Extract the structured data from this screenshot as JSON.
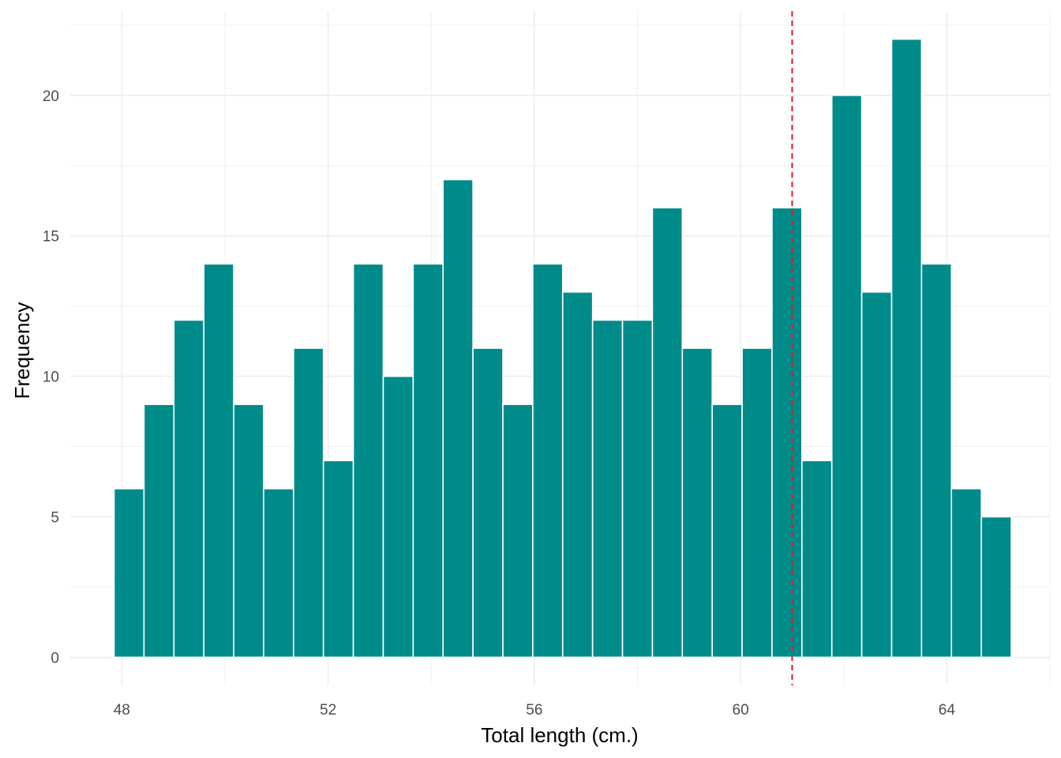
{
  "chart_data": {
    "type": "bar",
    "subtype": "histogram",
    "xlabel": "Total length (cm.)",
    "ylabel": "Frequency",
    "xlim": [
      47,
      66
    ],
    "ylim": [
      -1,
      23
    ],
    "x_ticks": [
      48,
      52,
      56,
      60,
      64
    ],
    "y_ticks": [
      0,
      5,
      10,
      15,
      20
    ],
    "bin_width": 0.58,
    "bins": [
      {
        "start": 47.85,
        "end": 48.43,
        "count": 6
      },
      {
        "start": 48.43,
        "end": 49.01,
        "count": 9
      },
      {
        "start": 49.01,
        "end": 49.59,
        "count": 12
      },
      {
        "start": 49.59,
        "end": 50.17,
        "count": 14
      },
      {
        "start": 50.17,
        "end": 50.75,
        "count": 9
      },
      {
        "start": 50.75,
        "end": 51.33,
        "count": 6
      },
      {
        "start": 51.33,
        "end": 51.91,
        "count": 11
      },
      {
        "start": 51.91,
        "end": 52.49,
        "count": 7
      },
      {
        "start": 52.49,
        "end": 53.07,
        "count": 14
      },
      {
        "start": 53.07,
        "end": 53.65,
        "count": 10
      },
      {
        "start": 53.65,
        "end": 54.23,
        "count": 14
      },
      {
        "start": 54.23,
        "end": 54.81,
        "count": 17
      },
      {
        "start": 54.81,
        "end": 55.39,
        "count": 11
      },
      {
        "start": 55.39,
        "end": 55.97,
        "count": 9
      },
      {
        "start": 55.97,
        "end": 56.55,
        "count": 14
      },
      {
        "start": 56.55,
        "end": 57.13,
        "count": 13
      },
      {
        "start": 57.13,
        "end": 57.71,
        "count": 12
      },
      {
        "start": 57.71,
        "end": 58.29,
        "count": 12
      },
      {
        "start": 58.29,
        "end": 58.87,
        "count": 16
      },
      {
        "start": 58.87,
        "end": 59.45,
        "count": 11
      },
      {
        "start": 59.45,
        "end": 60.03,
        "count": 9
      },
      {
        "start": 60.03,
        "end": 60.61,
        "count": 11
      },
      {
        "start": 60.61,
        "end": 61.19,
        "count": 16
      },
      {
        "start": 61.19,
        "end": 61.77,
        "count": 7
      },
      {
        "start": 61.77,
        "end": 62.35,
        "count": 20
      },
      {
        "start": 62.35,
        "end": 62.93,
        "count": 13
      },
      {
        "start": 62.93,
        "end": 63.51,
        "count": 22
      },
      {
        "start": 63.51,
        "end": 64.09,
        "count": 14
      },
      {
        "start": 64.09,
        "end": 64.67,
        "count": 6
      },
      {
        "start": 64.67,
        "end": 65.25,
        "count": 5
      }
    ],
    "reference_line": {
      "x": 61.0,
      "style": "dashed",
      "color": "#e41a1c"
    },
    "bar_color": "#008b8b",
    "bar_outline": "#ffffff",
    "grid": true,
    "legend": "none"
  }
}
